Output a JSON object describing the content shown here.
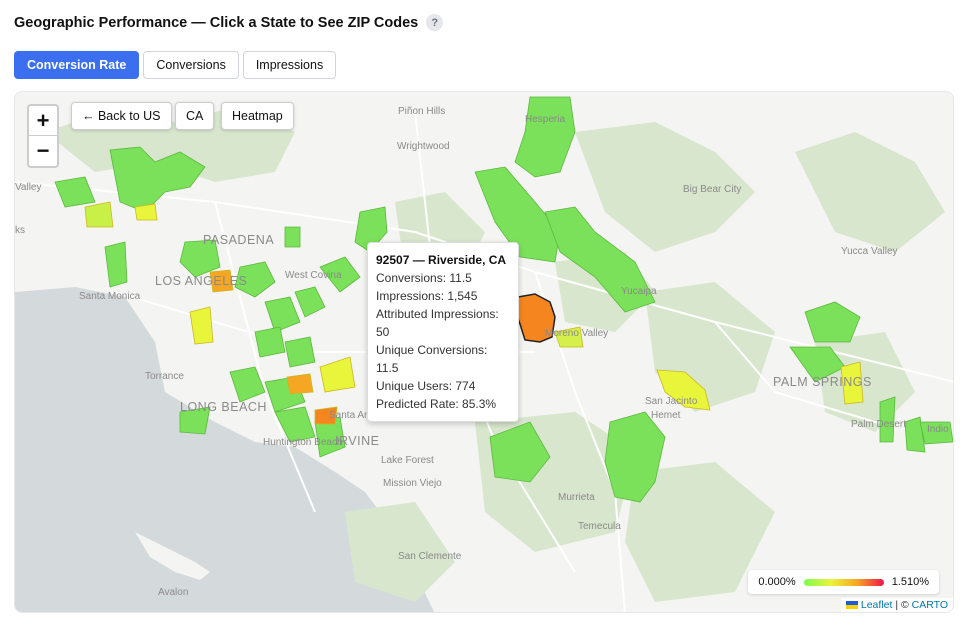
{
  "header": {
    "title": "Geographic Performance — Click a State to See ZIP Codes",
    "help": "?"
  },
  "tabs": [
    {
      "label": "Conversion Rate",
      "active": true
    },
    {
      "label": "Conversions",
      "active": false
    },
    {
      "label": "Impressions",
      "active": false
    }
  ],
  "map_controls": {
    "zoom_in": "+",
    "zoom_out": "−",
    "back": "← Back to US",
    "state": "CA",
    "heatmap": "Heatmap"
  },
  "places": {
    "pinon_hills": "Piñon Hills",
    "hesperia": "Hesperia",
    "wrightwood": "Wrightwood",
    "valley": "Valley",
    "big_bear_city": "Big Bear City",
    "ks": "ks",
    "pasadena": "PASADENA",
    "yucca_valley": "Yucca Valley",
    "los_angeles": "LOS ANGELES",
    "west_covina": "West Covina",
    "santa_monica": "Santa Monica",
    "yucaipa": "Yucaipa",
    "moreno_valley": "Moreno Valley",
    "torrance": "Torrance",
    "palm_springs": "PALM SPRINGS",
    "long_beach": "LONG BEACH",
    "san_jacinto": "San Jacinto",
    "hemet": "Hemet",
    "santa_ana": "Santa Ana",
    "palm_desert": "Palm Desert",
    "indio": "Indio",
    "huntington_beach": "Huntington Beach",
    "irvine": "IRVINE",
    "lake_forest": "Lake Forest",
    "mission_viejo": "Mission Viejo",
    "murrieta": "Murrieta",
    "temecula": "Temecula",
    "san_clemente": "San Clemente",
    "avalon": "Avalon"
  },
  "tooltip": {
    "title": "92507 — Riverside, CA",
    "conversions": "Conversions: 11.5",
    "impressions": "Impressions: 1,545",
    "attributed": "Attributed Impressions: 50",
    "unique_conversions": "Unique Conversions: 11.5",
    "unique_users": "Unique Users: 774",
    "predicted_rate": "Predicted Rate: 85.3%"
  },
  "legend": {
    "min": "0.000%",
    "max": "1.510%"
  },
  "attribution": {
    "leaflet": "Leaflet",
    "sep": " | © ",
    "carto": "CARTO"
  },
  "colors": {
    "accent": "#3b6ff0",
    "low": "#7dfb4d",
    "mid": "#e9f53b",
    "high": "#f5851f",
    "top": "#f0134d"
  }
}
